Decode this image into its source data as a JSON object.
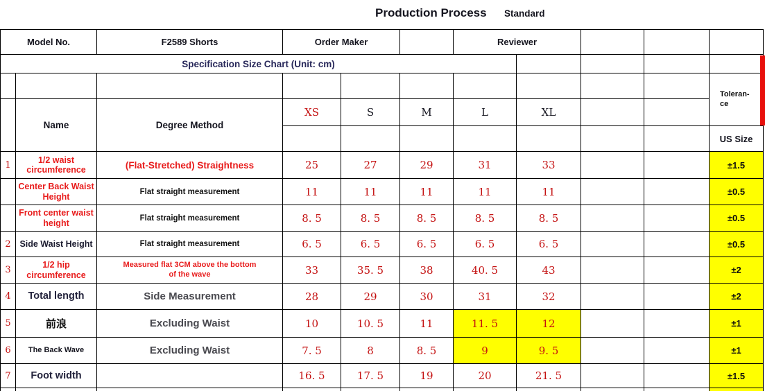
{
  "title": {
    "main": "Production Process",
    "sub": "Standard"
  },
  "header": {
    "model_label": "Model No.",
    "model_value": "F2589 Shorts",
    "order_maker": "Order Maker",
    "reviewer": "Reviewer",
    "spec_title": "Specification Size Chart (Unit: cm)",
    "tolerance_label": "Toleran-\nce",
    "us_size_label": "US Size",
    "name_col": "Name",
    "method_col": "Degree Method",
    "sizes": [
      "XS",
      "S",
      "M",
      "L",
      "XL"
    ]
  },
  "rows": [
    {
      "num": "1",
      "name": "1/2 waist circumference",
      "method": "(Flat-Stretched) Straightness",
      "values": [
        "25",
        "27",
        "29",
        "31",
        "33"
      ],
      "tol": "±1.5"
    },
    {
      "num": "",
      "name": "Center Back Waist Height",
      "method": "Flat straight measurement",
      "values": [
        "11",
        "11",
        "11",
        "11",
        "11"
      ],
      "tol": "±0.5"
    },
    {
      "num": "",
      "name": "Front center waist height",
      "method": "Flat straight measurement",
      "values": [
        "8. 5",
        "8. 5",
        "8. 5",
        "8. 5",
        "8. 5"
      ],
      "tol": "±0.5"
    },
    {
      "num": "2",
      "name": "Side Waist Height",
      "method": "Flat straight measurement",
      "values": [
        "6. 5",
        "6. 5",
        "6. 5",
        "6. 5",
        "6. 5"
      ],
      "tol": "±0.5"
    },
    {
      "num": "3",
      "name": "1/2 hip circumference",
      "method": "Measured flat 3CM above the bottom of the wave",
      "values": [
        "33",
        "35. 5",
        "38",
        "40. 5",
        "43"
      ],
      "tol": "±2"
    },
    {
      "num": "4",
      "name": "Total length",
      "method": "Side Measurement",
      "values": [
        "28",
        "29",
        "30",
        "31",
        "32"
      ],
      "tol": "±2"
    },
    {
      "num": "5",
      "name": "前浪",
      "method": "Excluding Waist",
      "values": [
        "10",
        "10. 5",
        "11",
        "11. 5",
        "12"
      ],
      "tol": "±1"
    },
    {
      "num": "6",
      "name": "The Back Wave",
      "method": "Excluding Waist",
      "values": [
        "7. 5",
        "8",
        "8. 5",
        "9",
        "9. 5"
      ],
      "tol": "±1"
    },
    {
      "num": "7",
      "name": "Foot width",
      "method": "",
      "values": [
        "16. 5",
        "17. 5",
        "19",
        "20",
        "21. 5"
      ],
      "tol": "±1.5"
    }
  ],
  "colors": {
    "accent_red_bar": "#e8100c",
    "highlight_yellow": "#ffff00",
    "value_red": "#c41111",
    "name_red": "#e81c1c",
    "spec_navy": "#28285a"
  }
}
